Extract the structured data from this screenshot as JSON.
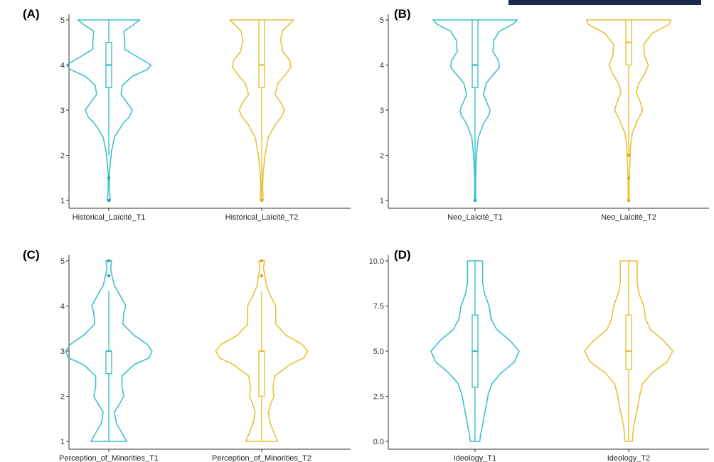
{
  "header_bar": {
    "color": "#1b2a4e"
  },
  "colors": {
    "t1": "#3ec1c9",
    "t2": "#e8c13a",
    "t1_dot": "#1aa3ad",
    "t2_dot": "#d9a80f"
  },
  "chart_data": [
    {
      "type": "violin",
      "panel": "(A)",
      "ylim": [
        1,
        5
      ],
      "yticks": [
        1,
        2,
        3,
        4,
        5
      ],
      "ytick_labels": [
        "1",
        "2",
        "3",
        "4",
        "5"
      ],
      "grid": false,
      "series": [
        {
          "name": "Historical_Laïcité_T1",
          "color_key": "t1",
          "median": 4,
          "q1": 3.5,
          "q3": 4.5,
          "whisker_low": 2,
          "whisker_high": 5,
          "outliers": [
            1.5,
            1
          ],
          "density": [
            [
              1,
              0.03
            ],
            [
              1.15,
              0.02
            ],
            [
              1.3,
              0.01
            ],
            [
              1.6,
              0.01
            ],
            [
              1.9,
              0.04
            ],
            [
              2.1,
              0.06
            ],
            [
              2.4,
              0.12
            ],
            [
              2.7,
              0.3
            ],
            [
              2.85,
              0.44
            ],
            [
              3,
              0.5
            ],
            [
              3.15,
              0.4
            ],
            [
              3.35,
              0.26
            ],
            [
              3.55,
              0.29
            ],
            [
              3.75,
              0.5
            ],
            [
              3.9,
              0.82
            ],
            [
              4,
              0.9
            ],
            [
              4.15,
              0.66
            ],
            [
              4.35,
              0.34
            ],
            [
              4.55,
              0.34
            ],
            [
              4.75,
              0.32
            ],
            [
              4.9,
              0.54
            ],
            [
              5,
              0.66
            ]
          ]
        },
        {
          "name": "Historical_Laïcité_T2",
          "color_key": "t2",
          "median": 4,
          "q1": 3.5,
          "q3": 5,
          "whisker_low": 1,
          "whisker_high": 5,
          "outliers": [
            1
          ],
          "density": [
            [
              1,
              0.03
            ],
            [
              1.3,
              0.02
            ],
            [
              1.6,
              0.03
            ],
            [
              2,
              0.07
            ],
            [
              2.4,
              0.14
            ],
            [
              2.7,
              0.3
            ],
            [
              2.85,
              0.42
            ],
            [
              3,
              0.48
            ],
            [
              3.15,
              0.42
            ],
            [
              3.35,
              0.28
            ],
            [
              3.6,
              0.35
            ],
            [
              3.8,
              0.52
            ],
            [
              3.95,
              0.62
            ],
            [
              4.1,
              0.6
            ],
            [
              4.3,
              0.45
            ],
            [
              4.55,
              0.4
            ],
            [
              4.75,
              0.44
            ],
            [
              4.9,
              0.58
            ],
            [
              5,
              0.68
            ]
          ]
        }
      ]
    },
    {
      "type": "violin",
      "panel": "(B)",
      "ylim": [
        1,
        5
      ],
      "yticks": [
        1,
        2,
        3,
        4,
        5
      ],
      "ytick_labels": [
        "1",
        "2",
        "3",
        "4",
        "5"
      ],
      "grid": false,
      "series": [
        {
          "name": "Neo_Laïcité_T1",
          "color_key": "t1",
          "median": 4,
          "q1": 3.5,
          "q3": 5,
          "whisker_low": 1,
          "whisker_high": 5,
          "outliers": [
            1
          ],
          "density": [
            [
              1,
              0.01
            ],
            [
              1.5,
              0.01
            ],
            [
              1.8,
              0.02
            ],
            [
              2.1,
              0.04
            ],
            [
              2.4,
              0.07
            ],
            [
              2.7,
              0.18
            ],
            [
              2.9,
              0.3
            ],
            [
              3,
              0.32
            ],
            [
              3.15,
              0.26
            ],
            [
              3.35,
              0.18
            ],
            [
              3.6,
              0.24
            ],
            [
              3.8,
              0.4
            ],
            [
              3.95,
              0.52
            ],
            [
              4.1,
              0.5
            ],
            [
              4.3,
              0.38
            ],
            [
              4.55,
              0.4
            ],
            [
              4.75,
              0.52
            ],
            [
              4.9,
              0.8
            ],
            [
              5,
              0.9
            ]
          ]
        },
        {
          "name": "Neo_Laïcité_T2",
          "color_key": "t2",
          "median": 4.5,
          "q1": 4,
          "q3": 5,
          "whisker_low": 2,
          "whisker_high": 5,
          "outliers": [
            2,
            1.5,
            1
          ],
          "density": [
            [
              1,
              0.01
            ],
            [
              1.5,
              0.01
            ],
            [
              1.9,
              0.03
            ],
            [
              2.2,
              0.04
            ],
            [
              2.5,
              0.08
            ],
            [
              2.8,
              0.2
            ],
            [
              3,
              0.3
            ],
            [
              3.2,
              0.24
            ],
            [
              3.4,
              0.16
            ],
            [
              3.6,
              0.22
            ],
            [
              3.8,
              0.34
            ],
            [
              4,
              0.42
            ],
            [
              4.2,
              0.34
            ],
            [
              4.45,
              0.32
            ],
            [
              4.7,
              0.5
            ],
            [
              4.9,
              0.86
            ],
            [
              5,
              0.9
            ]
          ]
        }
      ]
    },
    {
      "type": "violin",
      "panel": "(C)",
      "ylim": [
        1,
        5
      ],
      "yticks": [
        1,
        2,
        3,
        4,
        5
      ],
      "ytick_labels": [
        "1",
        "2",
        "3",
        "4",
        "5"
      ],
      "grid": false,
      "series": [
        {
          "name": "Perception_of_Minorities_T1",
          "color_key": "t1",
          "median": 3,
          "q1": 2.5,
          "q3": 3,
          "whisker_low": 1,
          "whisker_high": 4.33,
          "outliers": [
            4.67,
            5
          ],
          "density": [
            [
              1,
              0.38
            ],
            [
              1.15,
              0.3
            ],
            [
              1.4,
              0.16
            ],
            [
              1.65,
              0.12
            ],
            [
              1.85,
              0.24
            ],
            [
              2,
              0.32
            ],
            [
              2.2,
              0.28
            ],
            [
              2.45,
              0.28
            ],
            [
              2.7,
              0.54
            ],
            [
              2.85,
              0.86
            ],
            [
              3,
              0.92
            ],
            [
              3.15,
              0.82
            ],
            [
              3.35,
              0.54
            ],
            [
              3.6,
              0.3
            ],
            [
              3.85,
              0.32
            ],
            [
              4,
              0.36
            ],
            [
              4.2,
              0.26
            ],
            [
              4.45,
              0.12
            ],
            [
              4.7,
              0.06
            ],
            [
              4.85,
              0.04
            ],
            [
              5,
              0.06
            ]
          ]
        },
        {
          "name": "Perception_of_Minorities_T2",
          "color_key": "t2",
          "median": 3,
          "q1": 2,
          "q3": 3,
          "whisker_low": 1,
          "whisker_high": 4.33,
          "outliers": [
            4.67,
            5
          ],
          "density": [
            [
              1,
              0.34
            ],
            [
              1.15,
              0.28
            ],
            [
              1.4,
              0.18
            ],
            [
              1.65,
              0.14
            ],
            [
              1.85,
              0.2
            ],
            [
              2,
              0.26
            ],
            [
              2.2,
              0.24
            ],
            [
              2.45,
              0.28
            ],
            [
              2.7,
              0.6
            ],
            [
              2.85,
              0.9
            ],
            [
              3,
              0.98
            ],
            [
              3.15,
              0.86
            ],
            [
              3.35,
              0.52
            ],
            [
              3.6,
              0.3
            ],
            [
              3.85,
              0.3
            ],
            [
              4,
              0.3
            ],
            [
              4.2,
              0.2
            ],
            [
              4.45,
              0.1
            ],
            [
              4.7,
              0.06
            ],
            [
              4.85,
              0.04
            ],
            [
              5,
              0.06
            ]
          ]
        }
      ]
    },
    {
      "type": "violin",
      "panel": "(D)",
      "ylim": [
        0,
        10
      ],
      "yticks": [
        0,
        2.5,
        5,
        7.5,
        10
      ],
      "ytick_labels": [
        "0.0",
        "2.5",
        "5.0",
        "7.5",
        "10.0"
      ],
      "grid": false,
      "series": [
        {
          "name": "Ideology_T1",
          "color_key": "t1",
          "median": 5,
          "q1": 3,
          "q3": 7,
          "whisker_low": 0,
          "whisker_high": 10,
          "outliers": [],
          "density": [
            [
              0,
              0.1
            ],
            [
              0.4,
              0.12
            ],
            [
              0.9,
              0.16
            ],
            [
              1.5,
              0.2
            ],
            [
              2,
              0.24
            ],
            [
              2.6,
              0.28
            ],
            [
              3.2,
              0.36
            ],
            [
              3.8,
              0.56
            ],
            [
              4.4,
              0.84
            ],
            [
              5,
              0.94
            ],
            [
              5.6,
              0.74
            ],
            [
              6.2,
              0.46
            ],
            [
              6.8,
              0.34
            ],
            [
              7.5,
              0.3
            ],
            [
              8.2,
              0.2
            ],
            [
              8.8,
              0.16
            ],
            [
              9.4,
              0.16
            ],
            [
              10,
              0.16
            ]
          ]
        },
        {
          "name": "Ideology_T2",
          "color_key": "t2",
          "median": 5,
          "q1": 4,
          "q3": 7,
          "whisker_low": 0,
          "whisker_high": 10,
          "outliers": [],
          "density": [
            [
              0,
              0.08
            ],
            [
              0.4,
              0.09
            ],
            [
              0.9,
              0.11
            ],
            [
              1.5,
              0.16
            ],
            [
              2,
              0.2
            ],
            [
              2.6,
              0.24
            ],
            [
              3.2,
              0.3
            ],
            [
              3.8,
              0.5
            ],
            [
              4.4,
              0.82
            ],
            [
              5,
              0.94
            ],
            [
              5.6,
              0.74
            ],
            [
              6.2,
              0.46
            ],
            [
              6.8,
              0.36
            ],
            [
              7.5,
              0.32
            ],
            [
              8.2,
              0.22
            ],
            [
              8.8,
              0.18
            ],
            [
              9.4,
              0.18
            ],
            [
              10,
              0.18
            ]
          ]
        }
      ]
    }
  ]
}
